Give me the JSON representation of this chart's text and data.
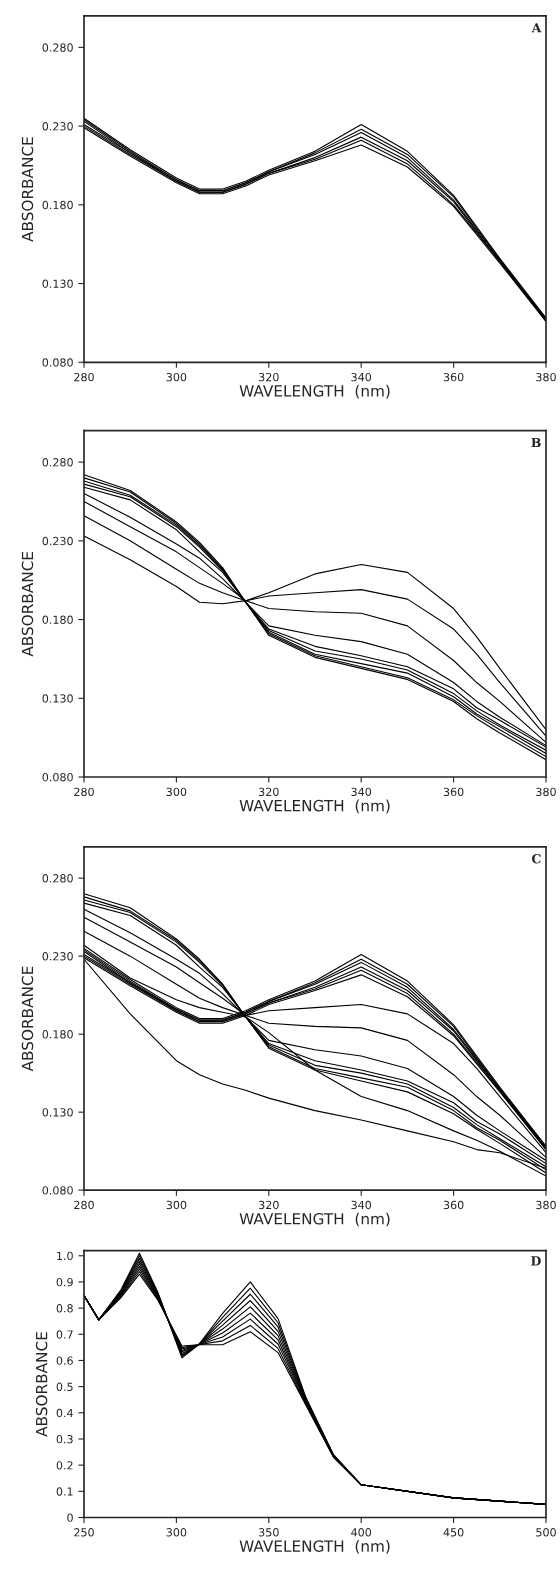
{
  "chart_data": [
    {
      "type": "line",
      "xlabel": "WAVELENGTH  (nm)",
      "ylabel": "ABSORBANCE",
      "annotations": [
        "A"
      ],
      "legend": false,
      "grid": false,
      "x": [
        280,
        290,
        300,
        305,
        310,
        315,
        320,
        330,
        340,
        350,
        360,
        365,
        370,
        380
      ],
      "xlim": [
        280,
        380
      ],
      "xticks": [
        280,
        300,
        320,
        340,
        360,
        380
      ],
      "ylim": [
        0.08,
        0.3
      ],
      "yticks": [
        {
          "value": 0.08,
          "label": "0.080"
        },
        {
          "value": 0.13,
          "label": "0.130"
        },
        {
          "value": 0.18,
          "label": "0.180"
        },
        {
          "value": 0.23,
          "label": "0.230"
        },
        {
          "value": 0.28,
          "label": "0.280"
        }
      ],
      "series": [
        {
          "color": "#000000",
          "values": [
            0.229,
            0.211,
            0.194,
            0.187,
            0.187,
            0.192,
            0.199,
            0.208,
            0.218,
            0.204,
            0.179,
            0.161,
            0.143,
            0.106
          ]
        },
        {
          "color": "#000000",
          "values": [
            0.23,
            0.212,
            0.195,
            0.188,
            0.188,
            0.193,
            0.2,
            0.209,
            0.221,
            0.206,
            0.18,
            0.162,
            0.144,
            0.106
          ]
        },
        {
          "color": "#000000",
          "values": [
            0.231,
            0.213,
            0.195,
            0.188,
            0.188,
            0.193,
            0.2,
            0.21,
            0.223,
            0.208,
            0.182,
            0.163,
            0.144,
            0.107
          ]
        },
        {
          "color": "#000000",
          "values": [
            0.233,
            0.213,
            0.196,
            0.189,
            0.189,
            0.194,
            0.201,
            0.212,
            0.226,
            0.21,
            0.183,
            0.164,
            0.145,
            0.107
          ]
        },
        {
          "color": "#000000",
          "values": [
            0.234,
            0.214,
            0.196,
            0.189,
            0.189,
            0.194,
            0.201,
            0.213,
            0.228,
            0.212,
            0.185,
            0.165,
            0.145,
            0.108
          ]
        },
        {
          "color": "#000000",
          "values": [
            0.235,
            0.215,
            0.197,
            0.19,
            0.19,
            0.195,
            0.202,
            0.214,
            0.231,
            0.214,
            0.186,
            0.166,
            0.146,
            0.108
          ]
        }
      ]
    },
    {
      "type": "line",
      "xlabel": "WAVELENGTH  (nm)",
      "ylabel": "ABSORBANCE",
      "annotations": [
        "B"
      ],
      "legend": false,
      "grid": false,
      "x": [
        280,
        290,
        300,
        305,
        310,
        315,
        320,
        330,
        340,
        350,
        360,
        365,
        370,
        380
      ],
      "xlim": [
        280,
        380
      ],
      "xticks": [
        280,
        300,
        320,
        340,
        360,
        380
      ],
      "ylim": [
        0.08,
        0.3
      ],
      "yticks": [
        {
          "value": 0.08,
          "label": "0.080"
        },
        {
          "value": 0.13,
          "label": "0.130"
        },
        {
          "value": 0.18,
          "label": "0.180"
        },
        {
          "value": 0.23,
          "label": "0.230"
        },
        {
          "value": 0.28,
          "label": "0.280"
        }
      ],
      "series": [
        {
          "color": "#000000",
          "values": [
            0.233,
            0.218,
            0.201,
            0.191,
            0.19,
            0.192,
            0.197,
            0.209,
            0.215,
            0.21,
            0.187,
            0.169,
            0.149,
            0.11
          ]
        },
        {
          "color": "#000000",
          "values": [
            0.246,
            0.23,
            0.212,
            0.203,
            0.197,
            0.192,
            0.195,
            0.197,
            0.199,
            0.193,
            0.174,
            0.158,
            0.14,
            0.106
          ]
        },
        {
          "color": "#000000",
          "values": [
            0.255,
            0.239,
            0.223,
            0.213,
            0.203,
            0.192,
            0.187,
            0.185,
            0.184,
            0.176,
            0.154,
            0.14,
            0.128,
            0.102
          ]
        },
        {
          "color": "#000000",
          "values": [
            0.26,
            0.245,
            0.228,
            0.219,
            0.206,
            0.191,
            0.176,
            0.17,
            0.166,
            0.158,
            0.14,
            0.128,
            0.118,
            0.1
          ]
        },
        {
          "color": "#000000",
          "values": [
            0.264,
            0.256,
            0.237,
            0.223,
            0.21,
            0.191,
            0.174,
            0.163,
            0.157,
            0.15,
            0.136,
            0.124,
            0.116,
            0.099
          ]
        },
        {
          "color": "#000000",
          "values": [
            0.266,
            0.258,
            0.239,
            0.226,
            0.211,
            0.191,
            0.173,
            0.16,
            0.155,
            0.148,
            0.133,
            0.122,
            0.113,
            0.097
          ]
        },
        {
          "color": "#000000",
          "values": [
            0.268,
            0.259,
            0.24,
            0.227,
            0.212,
            0.191,
            0.172,
            0.158,
            0.152,
            0.146,
            0.131,
            0.12,
            0.112,
            0.095
          ]
        },
        {
          "color": "#000000",
          "values": [
            0.27,
            0.261,
            0.241,
            0.228,
            0.212,
            0.191,
            0.171,
            0.157,
            0.15,
            0.143,
            0.129,
            0.119,
            0.11,
            0.093
          ]
        },
        {
          "color": "#000000",
          "values": [
            0.272,
            0.262,
            0.242,
            0.229,
            0.213,
            0.191,
            0.17,
            0.156,
            0.149,
            0.142,
            0.128,
            0.117,
            0.108,
            0.091
          ]
        }
      ]
    },
    {
      "type": "line",
      "xlabel": "WAVELENGTH  (nm)",
      "ylabel": "ABSORBANCE",
      "annotations": [
        "C"
      ],
      "legend": false,
      "grid": false,
      "x": [
        280,
        290,
        300,
        305,
        310,
        315,
        320,
        330,
        340,
        350,
        360,
        365,
        370,
        380
      ],
      "xlim": [
        280,
        380
      ],
      "xticks": [
        280,
        300,
        320,
        340,
        360,
        380
      ],
      "ylim": [
        0.08,
        0.3
      ],
      "yticks": [
        {
          "value": 0.08,
          "label": "0.080"
        },
        {
          "value": 0.13,
          "label": "0.130"
        },
        {
          "value": 0.18,
          "label": "0.180"
        },
        {
          "value": 0.23,
          "label": "0.230"
        },
        {
          "value": 0.28,
          "label": "0.280"
        }
      ],
      "series": [
        {
          "color": "#000000",
          "values": [
            0.229,
            0.211,
            0.194,
            0.187,
            0.187,
            0.192,
            0.199,
            0.208,
            0.218,
            0.204,
            0.179,
            0.161,
            0.143,
            0.106
          ]
        },
        {
          "color": "#000000",
          "values": [
            0.23,
            0.212,
            0.195,
            0.188,
            0.188,
            0.193,
            0.2,
            0.209,
            0.221,
            0.206,
            0.18,
            0.162,
            0.144,
            0.106
          ]
        },
        {
          "color": "#000000",
          "values": [
            0.231,
            0.213,
            0.195,
            0.188,
            0.188,
            0.193,
            0.2,
            0.21,
            0.223,
            0.208,
            0.182,
            0.163,
            0.144,
            0.107
          ]
        },
        {
          "color": "#000000",
          "values": [
            0.233,
            0.213,
            0.196,
            0.189,
            0.189,
            0.194,
            0.201,
            0.212,
            0.226,
            0.21,
            0.183,
            0.164,
            0.145,
            0.107
          ]
        },
        {
          "color": "#000000",
          "values": [
            0.234,
            0.214,
            0.196,
            0.189,
            0.189,
            0.194,
            0.201,
            0.213,
            0.228,
            0.212,
            0.185,
            0.165,
            0.145,
            0.108
          ]
        },
        {
          "color": "#000000",
          "values": [
            0.235,
            0.215,
            0.197,
            0.19,
            0.19,
            0.195,
            0.202,
            0.214,
            0.231,
            0.214,
            0.186,
            0.166,
            0.146,
            0.108
          ]
        },
        {
          "color": "#000000",
          "values": [
            0.246,
            0.23,
            0.212,
            0.203,
            0.197,
            0.192,
            0.195,
            0.197,
            0.199,
            0.193,
            0.174,
            0.158,
            0.14,
            0.104
          ]
        },
        {
          "color": "#000000",
          "values": [
            0.255,
            0.239,
            0.223,
            0.213,
            0.203,
            0.192,
            0.187,
            0.185,
            0.184,
            0.176,
            0.154,
            0.14,
            0.128,
            0.101
          ]
        },
        {
          "color": "#000000",
          "values": [
            0.26,
            0.245,
            0.228,
            0.219,
            0.206,
            0.191,
            0.176,
            0.17,
            0.166,
            0.158,
            0.14,
            0.128,
            0.118,
            0.099
          ]
        },
        {
          "color": "#000000",
          "values": [
            0.264,
            0.256,
            0.237,
            0.223,
            0.21,
            0.191,
            0.174,
            0.163,
            0.157,
            0.15,
            0.136,
            0.124,
            0.116,
            0.097
          ]
        },
        {
          "color": "#000000",
          "values": [
            0.266,
            0.258,
            0.239,
            0.226,
            0.211,
            0.191,
            0.173,
            0.16,
            0.155,
            0.148,
            0.133,
            0.122,
            0.113,
            0.095
          ]
        },
        {
          "color": "#000000",
          "values": [
            0.268,
            0.259,
            0.24,
            0.227,
            0.212,
            0.191,
            0.172,
            0.158,
            0.152,
            0.146,
            0.131,
            0.12,
            0.112,
            0.093
          ]
        },
        {
          "color": "#000000",
          "values": [
            0.27,
            0.261,
            0.241,
            0.228,
            0.212,
            0.191,
            0.171,
            0.157,
            0.15,
            0.143,
            0.129,
            0.119,
            0.11,
            0.091
          ]
        },
        {
          "color": "#000000",
          "values": [
            0.237,
            0.216,
            0.202,
            0.197,
            0.194,
            0.191,
            0.181,
            0.157,
            0.14,
            0.131,
            0.118,
            0.112,
            0.105,
            0.089
          ]
        },
        {
          "color": "#000000",
          "values": [
            0.228,
            0.193,
            0.163,
            0.154,
            0.148,
            0.144,
            0.139,
            0.131,
            0.125,
            0.118,
            0.111,
            0.106,
            0.104,
            0.094
          ]
        }
      ]
    },
    {
      "type": "line",
      "xlabel": "WAVELENGTH  (nm)",
      "ylabel": "ABSORBANCE",
      "annotations": [
        "D"
      ],
      "legend": false,
      "grid": false,
      "x": [
        250,
        258,
        270,
        280,
        290,
        303,
        312,
        325,
        340,
        355,
        370,
        385,
        400,
        450,
        500
      ],
      "xlim": [
        250,
        500
      ],
      "xticks": [
        250,
        300,
        350,
        400,
        450,
        500
      ],
      "ylim": [
        0,
        1.02
      ],
      "yticks": [
        0,
        0.1,
        0.2,
        0.3,
        0.4,
        0.5,
        0.6,
        0.7,
        0.8,
        0.9,
        {
          "value": 1,
          "label": "1.0"
        }
      ],
      "series": [
        {
          "color": "#000000",
          "values": [
            0.848,
            0.755,
            0.87,
            1.01,
            0.86,
            0.61,
            0.66,
            0.66,
            0.71,
            0.63,
            0.43,
            0.23,
            0.125,
            0.075,
            0.05
          ]
        },
        {
          "color": "#000000",
          "values": [
            0.848,
            0.755,
            0.866,
            1.0,
            0.856,
            0.616,
            0.66,
            0.675,
            0.734,
            0.646,
            0.434,
            0.231,
            0.125,
            0.075,
            0.05
          ]
        },
        {
          "color": "#000000",
          "values": [
            0.848,
            0.755,
            0.863,
            0.99,
            0.853,
            0.621,
            0.66,
            0.69,
            0.758,
            0.663,
            0.438,
            0.233,
            0.125,
            0.075,
            0.05
          ]
        },
        {
          "color": "#000000",
          "values": [
            0.848,
            0.755,
            0.859,
            0.98,
            0.849,
            0.627,
            0.66,
            0.705,
            0.781,
            0.679,
            0.441,
            0.234,
            0.125,
            0.075,
            0.05
          ]
        },
        {
          "color": "#000000",
          "values": [
            0.848,
            0.755,
            0.855,
            0.97,
            0.845,
            0.633,
            0.66,
            0.72,
            0.805,
            0.695,
            0.445,
            0.235,
            0.125,
            0.075,
            0.05
          ]
        },
        {
          "color": "#000000",
          "values": [
            0.848,
            0.755,
            0.851,
            0.96,
            0.841,
            0.638,
            0.66,
            0.735,
            0.829,
            0.711,
            0.449,
            0.236,
            0.125,
            0.075,
            0.05
          ]
        },
        {
          "color": "#000000",
          "values": [
            0.848,
            0.755,
            0.848,
            0.95,
            0.838,
            0.644,
            0.66,
            0.75,
            0.853,
            0.728,
            0.453,
            0.238,
            0.125,
            0.075,
            0.05
          ]
        },
        {
          "color": "#000000",
          "values": [
            0.848,
            0.755,
            0.844,
            0.94,
            0.834,
            0.649,
            0.66,
            0.765,
            0.876,
            0.744,
            0.456,
            0.239,
            0.125,
            0.075,
            0.05
          ]
        },
        {
          "color": "#000000",
          "values": [
            0.848,
            0.755,
            0.84,
            0.93,
            0.83,
            0.655,
            0.66,
            0.78,
            0.9,
            0.76,
            0.46,
            0.24,
            0.125,
            0.075,
            0.05
          ]
        }
      ]
    }
  ]
}
